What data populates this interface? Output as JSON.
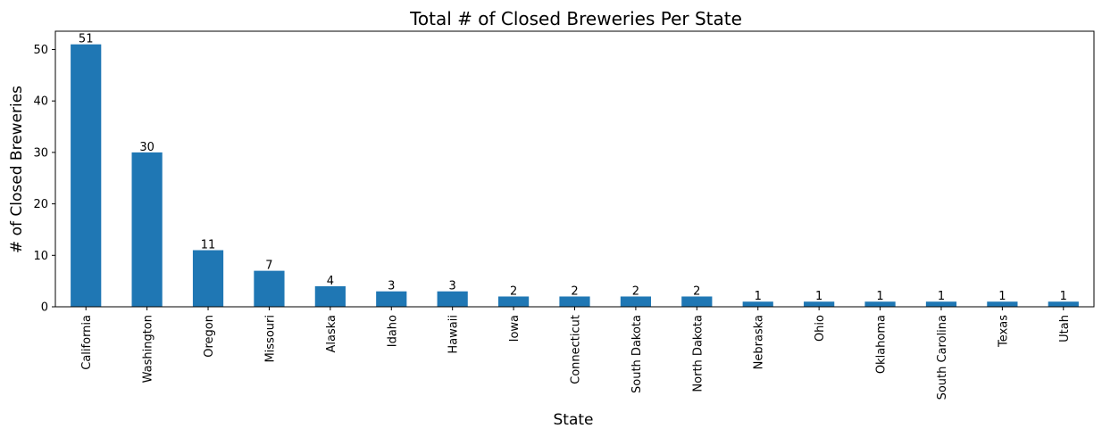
{
  "chart_data": {
    "type": "bar",
    "title": "Total # of Closed Breweries Per State",
    "xlabel": "State",
    "ylabel": "# of Closed Breweries",
    "categories": [
      "California",
      "Washington",
      "Oregon",
      "Missouri",
      "Alaska",
      "Idaho",
      "Hawaii",
      "Iowa",
      "Connecticut",
      "South Dakota",
      "North Dakota",
      "Nebraska",
      "Ohio",
      "Oklahoma",
      "South Carolina",
      "Texas",
      "Utah"
    ],
    "values": [
      51,
      30,
      11,
      7,
      4,
      3,
      3,
      2,
      2,
      2,
      2,
      1,
      1,
      1,
      1,
      1,
      1
    ],
    "ylim": [
      0,
      53.55
    ],
    "yticks": [
      0,
      10,
      20,
      30,
      40,
      50
    ],
    "grid": false,
    "bar_color": "#1f77b4",
    "data_labels": true
  }
}
